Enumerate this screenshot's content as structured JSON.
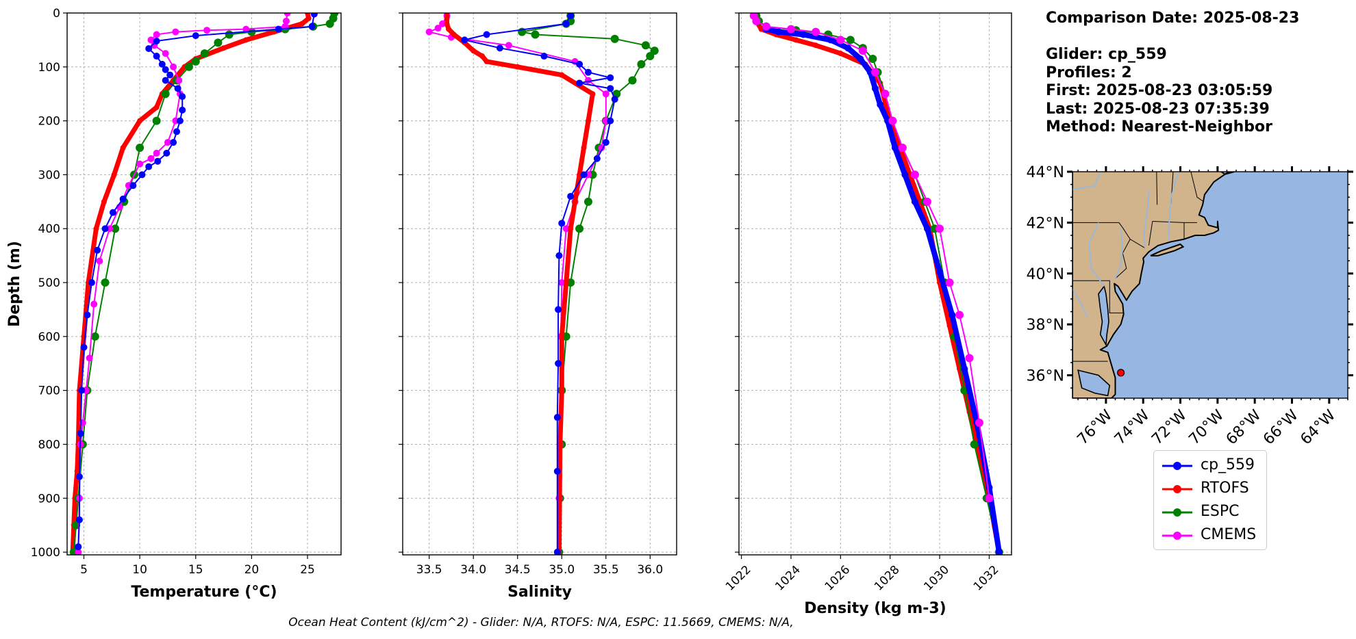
{
  "info": {
    "comparison_date": "Comparison Date: 2025-08-23",
    "glider": "Glider: cp_559",
    "profiles": "Profiles: 2",
    "first": "First: 2025-08-23 03:05:59",
    "last": "Last: 2025-08-23 07:35:39",
    "method": "Method: Nearest-Neighbor"
  },
  "footer": "Ocean Heat Content (kJ/cm^2) - Glider: N/A,  RTOFS: N/A,  ESPC: 11.5669,  CMEMS: N/A,",
  "colors": {
    "glider": "#0000ff",
    "rtofs": "#ff0000",
    "espc": "#008000",
    "cmems": "#ff00ff",
    "glider_alt": "#00ffff",
    "land": "#d2b48c",
    "ocean": "#97b6e1",
    "rivers": "#9bb8d8"
  },
  "legend": [
    {
      "name": "cp_559",
      "color": "#0000ff"
    },
    {
      "name": "RTOFS",
      "color": "#ff0000"
    },
    {
      "name": "ESPC",
      "color": "#008000"
    },
    {
      "name": "CMEMS",
      "color": "#ff00ff"
    }
  ],
  "chart_data": [
    {
      "type": "line",
      "xlabel": "Temperature (°C)",
      "ylabel": "Depth (m)",
      "xlim": [
        3.5,
        28
      ],
      "ylim": [
        1005,
        0
      ],
      "xticks": [
        5,
        10,
        15,
        20,
        25
      ],
      "yticks": [
        0,
        100,
        200,
        300,
        400,
        500,
        600,
        700,
        800,
        900,
        1000
      ],
      "grid": true,
      "series": [
        {
          "name": "RTOFS",
          "color": "#ff0000",
          "width": 7,
          "marker": 4,
          "x": [
            25.0,
            25.1,
            24.5,
            22.0,
            19.5,
            17.5,
            15.0,
            14.0,
            13.0,
            12.0,
            11.5,
            10.0,
            8.5,
            7.7,
            6.8,
            6.1,
            5.4,
            5.0,
            4.6,
            4.5,
            4.4,
            4.2,
            4.1,
            4.0
          ],
          "y": [
            0,
            10,
            20,
            35,
            50,
            65,
            85,
            100,
            125,
            150,
            175,
            200,
            250,
            300,
            350,
            400,
            500,
            600,
            700,
            800,
            850,
            900,
            950,
            1000
          ]
        },
        {
          "name": "ESPC",
          "color": "#008000",
          "width": 2,
          "marker": 6,
          "x": [
            27.4,
            27.3,
            27.0,
            25.5,
            23.0,
            20.0,
            18.0,
            17.0,
            15.8,
            15.0,
            14.4,
            13.3,
            12.3,
            11.5,
            10.0,
            9.5,
            8.6,
            7.8,
            6.9,
            6.0,
            5.3,
            4.9,
            4.5,
            4.3,
            4.1
          ],
          "y": [
            0,
            10,
            20,
            25,
            30,
            35,
            40,
            55,
            75,
            90,
            100,
            125,
            150,
            200,
            250,
            300,
            350,
            400,
            500,
            600,
            700,
            800,
            900,
            950,
            1000
          ]
        },
        {
          "name": "CMEMS",
          "color": "#ff00ff",
          "width": 2,
          "marker": 5,
          "x": [
            23.2,
            23.1,
            23.0,
            19.5,
            16.0,
            13.2,
            11.5,
            11.0,
            11.3,
            12.3,
            13.0,
            13.5,
            13.6,
            13.2,
            12.5,
            11.5,
            11.0,
            10.0,
            9.0,
            8.2,
            7.3,
            6.4,
            5.9,
            5.5,
            5.2,
            4.9,
            4.7,
            4.6,
            4.5
          ],
          "y": [
            0,
            15,
            25,
            30,
            32,
            35,
            40,
            50,
            60,
            75,
            100,
            125,
            150,
            200,
            240,
            260,
            270,
            280,
            320,
            360,
            400,
            460,
            540,
            640,
            700,
            760,
            800,
            900,
            1000
          ]
        },
        {
          "name": "cp_559",
          "color": "#0000ff",
          "width": 2,
          "marker": 5,
          "x": [
            25.6,
            25.4,
            22.4,
            15.0,
            11.5,
            10.8,
            11.5,
            12.0,
            12.3,
            12.7,
            12.3,
            13.4,
            13.8,
            13.8,
            13.6,
            13.3,
            13.0,
            12.4,
            11.6,
            10.8,
            10.2,
            9.4,
            8.5,
            7.6,
            6.9,
            6.2,
            5.7,
            5.3,
            5.0,
            4.8,
            4.7,
            4.6,
            4.6,
            4.5
          ],
          "y": [
            2,
            25,
            30,
            42,
            52,
            66,
            80,
            95,
            105,
            115,
            125,
            140,
            155,
            180,
            200,
            220,
            240,
            260,
            275,
            285,
            300,
            320,
            345,
            370,
            400,
            440,
            500,
            560,
            620,
            700,
            780,
            860,
            940,
            990
          ]
        }
      ]
    },
    {
      "type": "line",
      "xlabel": "Salinity",
      "xlim": [
        33.2,
        36.3
      ],
      "ylim": [
        1005,
        0
      ],
      "xticks": [
        33.5,
        34.0,
        34.5,
        35.0,
        35.5,
        36.0
      ],
      "grid": true,
      "series": [
        {
          "name": "ESPC",
          "color": "#008000",
          "width": 2,
          "marker": 6,
          "x": [
            35.1,
            35.1,
            35.05,
            34.55,
            34.7,
            35.6,
            35.95,
            36.05,
            36.0,
            35.9,
            35.8,
            35.62,
            35.5,
            35.42,
            35.35,
            35.3,
            35.2,
            35.1,
            35.05,
            35.0,
            35.0,
            34.98,
            34.97
          ],
          "y": [
            5,
            15,
            20,
            35,
            40,
            48,
            60,
            70,
            80,
            95,
            125,
            150,
            200,
            250,
            300,
            350,
            400,
            500,
            600,
            700,
            800,
            900,
            1000
          ]
        },
        {
          "name": "CMEMS",
          "color": "#ff00ff",
          "width": 2,
          "marker": 5,
          "x": [
            33.7,
            33.65,
            33.6,
            33.5,
            33.75,
            34.4,
            35.15,
            35.3,
            35.5,
            35.5,
            35.45,
            35.3,
            35.15,
            35.05,
            35.0,
            34.99,
            34.98,
            34.97
          ],
          "y": [
            5,
            20,
            28,
            35,
            45,
            60,
            90,
            125,
            150,
            200,
            250,
            300,
            350,
            400,
            500,
            600,
            800,
            900
          ]
        },
        {
          "name": "RTOFS",
          "color": "#ff0000",
          "width": 7,
          "marker": 4,
          "x": [
            33.7,
            33.7,
            33.7,
            33.72,
            33.78,
            33.9,
            34.0,
            34.1,
            34.15,
            34.5,
            35.0,
            35.35,
            35.3,
            35.25,
            35.2,
            35.15,
            35.1,
            35.05,
            35.0,
            35.0,
            34.98,
            34.97
          ],
          "y": [
            0,
            10,
            20,
            30,
            40,
            55,
            70,
            80,
            90,
            100,
            115,
            150,
            200,
            250,
            300,
            350,
            400,
            500,
            600,
            700,
            800,
            1000
          ]
        },
        {
          "name": "cp_559",
          "color": "#0000ff",
          "width": 2,
          "marker": 5,
          "x": [
            35.1,
            35.05,
            34.15,
            33.9,
            34.3,
            34.8,
            35.2,
            35.3,
            35.55,
            35.2,
            35.55,
            35.6,
            35.55,
            35.5,
            35.4,
            35.25,
            35.1,
            35.0,
            34.97,
            34.96,
            34.96,
            34.95,
            34.95,
            34.95
          ],
          "y": [
            5,
            20,
            40,
            50,
            65,
            80,
            95,
            110,
            120,
            130,
            140,
            160,
            200,
            240,
            270,
            300,
            340,
            390,
            450,
            550,
            650,
            750,
            850,
            1000
          ]
        }
      ]
    },
    {
      "type": "line",
      "xlabel": "Density (kg m-3)",
      "xlim": [
        1021.9,
        1032.9
      ],
      "ylim": [
        1005,
        0
      ],
      "xticks": [
        1022,
        1024,
        1026,
        1028,
        1030,
        1032
      ],
      "grid": true,
      "series": [
        {
          "name": "RTOFS",
          "color": "#ff0000",
          "width": 7,
          "marker": 4,
          "x": [
            1022.5,
            1022.6,
            1022.8,
            1023.4,
            1024.2,
            1025.0,
            1026.0,
            1027.0,
            1027.6,
            1028.0,
            1028.4,
            1028.8,
            1029.2,
            1029.6,
            1030.0,
            1030.4,
            1030.8,
            1031.2,
            1031.6,
            1032.0,
            1032.4
          ],
          "y": [
            0,
            15,
            30,
            40,
            50,
            60,
            75,
            95,
            130,
            200,
            250,
            300,
            350,
            400,
            500,
            580,
            660,
            740,
            820,
            900,
            1000
          ]
        },
        {
          "name": "ESPC",
          "color": "#008000",
          "width": 2,
          "marker": 6,
          "x": [
            1022.6,
            1022.7,
            1023.0,
            1024.2,
            1025.5,
            1026.4,
            1026.9,
            1027.3,
            1027.5,
            1027.8,
            1028.1,
            1028.5,
            1029.0,
            1029.4,
            1029.8,
            1030.2,
            1030.6,
            1031.0,
            1031.4,
            1031.9,
            1032.4
          ],
          "y": [
            5,
            15,
            25,
            32,
            40,
            50,
            65,
            85,
            110,
            150,
            200,
            250,
            300,
            350,
            400,
            500,
            600,
            700,
            800,
            900,
            1000
          ]
        },
        {
          "name": "cp_559",
          "color": "#0000ff",
          "width": 8,
          "marker": 5,
          "x": [
            1023.0,
            1023.5,
            1024.5,
            1025.6,
            1026.3,
            1026.8,
            1027.2,
            1027.4,
            1027.6,
            1027.9,
            1028.2,
            1028.6,
            1029.0,
            1029.5,
            1030.0,
            1030.5,
            1031.0,
            1031.5,
            1032.0,
            1032.4
          ],
          "y": [
            30,
            35,
            40,
            50,
            65,
            85,
            110,
            140,
            170,
            200,
            250,
            300,
            350,
            400,
            480,
            560,
            660,
            760,
            880,
            1000
          ]
        },
        {
          "name": "CMEMS",
          "color": "#ff00ff",
          "width": 2,
          "marker": 6,
          "x": [
            1022.5,
            1022.6,
            1023.0,
            1024.0,
            1025.0,
            1026.0,
            1026.9,
            1027.4,
            1027.8,
            1028.1,
            1028.5,
            1029.0,
            1029.5,
            1030.0,
            1030.4,
            1030.8,
            1031.2,
            1031.6,
            1032.0
          ],
          "y": [
            5,
            15,
            25,
            30,
            35,
            50,
            70,
            110,
            150,
            200,
            250,
            300,
            350,
            400,
            500,
            560,
            640,
            760,
            900
          ]
        }
      ]
    },
    {
      "type": "map",
      "lat_ticks": [
        "36°N",
        "38°N",
        "40°N",
        "42°N",
        "44°N"
      ],
      "lon_ticks": [
        "76°W",
        "74°W",
        "72°W",
        "70°W",
        "68°W",
        "66°W",
        "64°W"
      ],
      "lon_range": [
        -77.8,
        -63.0
      ],
      "lat_range": [
        35.1,
        44.0
      ],
      "marker": {
        "lon": -75.2,
        "lat": 36.1,
        "color": "#ff0000"
      }
    }
  ]
}
